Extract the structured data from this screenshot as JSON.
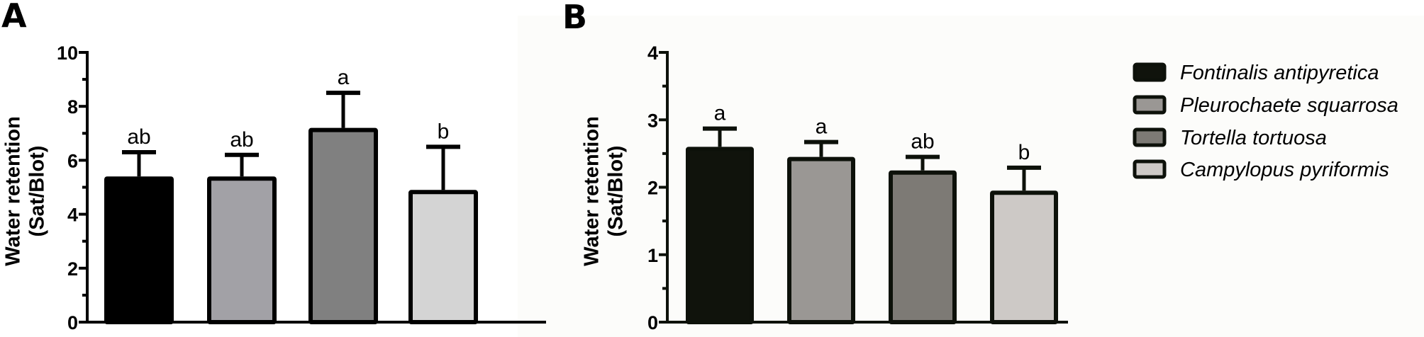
{
  "chart_data": [
    {
      "panel": "A",
      "type": "bar",
      "title": "",
      "xlabel": "",
      "ylabel": "Water retention (Sat/Blot)",
      "ylabel_lines": [
        "Water retention",
        "(Sat/Blot)"
      ],
      "ylim": [
        0,
        10
      ],
      "yticks": [
        0,
        2,
        4,
        6,
        8,
        10
      ],
      "minor_yticks": [
        1,
        3,
        5,
        7,
        9
      ],
      "grid": false,
      "categories": [
        "Fontinalis antipyretica",
        "Pleurochaete squarrosa",
        "Tortella tortuosa",
        "Campylopus pyriformis"
      ],
      "values": [
        5.4,
        5.4,
        7.2,
        4.9
      ],
      "error_upper": [
        6.3,
        6.2,
        8.5,
        6.5
      ],
      "significance": [
        "ab",
        "ab",
        "a",
        "b"
      ],
      "colors": [
        "#000000",
        "#A2A1A6",
        "#808080",
        "#D4D4D4"
      ],
      "edge_color": "#000000"
    },
    {
      "panel": "B",
      "type": "bar",
      "title": "",
      "xlabel": "",
      "ylabel": "Water retention (Sat/Blot)",
      "ylabel_lines": [
        "Water retention",
        "(Sat/Blot)"
      ],
      "ylim": [
        0,
        4
      ],
      "yticks": [
        0,
        1,
        2,
        3,
        4
      ],
      "minor_yticks": [
        0.5,
        1.5,
        2.5,
        3.5
      ],
      "grid": false,
      "categories": [
        "Fontinalis antipyretica",
        "Pleurochaete squarrosa",
        "Tortella tortuosa",
        "Campylopus pyriformis"
      ],
      "values": [
        2.6,
        2.45,
        2.25,
        1.95
      ],
      "error_upper": [
        2.87,
        2.67,
        2.45,
        2.29
      ],
      "significance": [
        "a",
        "a",
        "ab",
        "b"
      ],
      "colors": [
        "#10130C",
        "#9A9794",
        "#7D7A75",
        "#CDC9C6"
      ],
      "edge_color": "#0D110A",
      "legend_position": "right"
    }
  ],
  "legend": {
    "items": [
      {
        "label": "Fontinalis antipyretica",
        "color": "#10130C"
      },
      {
        "label": "Pleurochaete squarrosa",
        "color": "#9A9794"
      },
      {
        "label": "Tortella tortuosa",
        "color": "#7D7A75"
      },
      {
        "label": "Campylopus pyriformis",
        "color": "#CDC9C6"
      }
    ]
  },
  "panels": {
    "a_letter": "A",
    "b_letter": "B"
  }
}
